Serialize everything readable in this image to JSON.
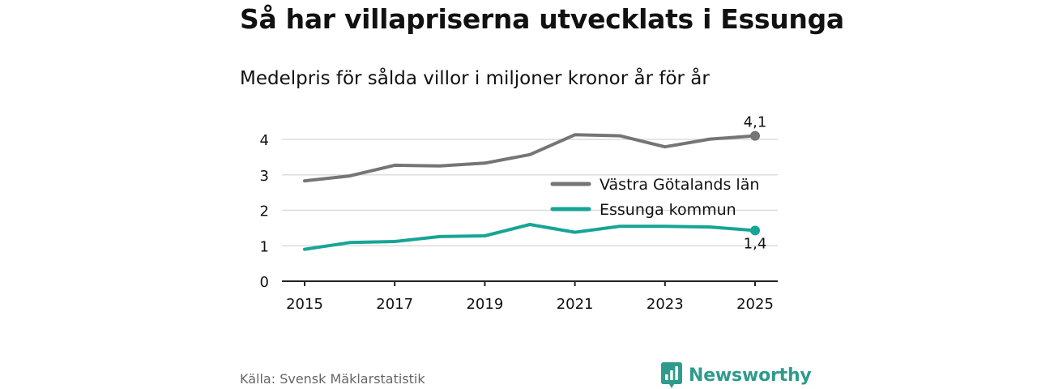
{
  "title": "Så har villapriserna utvecklats i Essunga",
  "subtitle": "Medelpris för sålda villor i miljoner kronor år för år",
  "source": "Källa: Svensk Mäklarstatistik",
  "brand": "Newsworthy",
  "colors": {
    "region": "#757575",
    "municipality": "#16a596",
    "brand": "#2e9b8c"
  },
  "chart_data": {
    "type": "line",
    "title": "Så har villapriserna utvecklats i Essunga",
    "subtitle": "Medelpris för sålda villor i miljoner kronor år för år",
    "xlabel": "",
    "ylabel": "",
    "x": [
      2015,
      2016,
      2017,
      2018,
      2019,
      2020,
      2021,
      2022,
      2023,
      2024,
      2025
    ],
    "xticks": [
      "2015",
      "2017",
      "2019",
      "2021",
      "2023",
      "2025"
    ],
    "yticks": [
      "0",
      "1",
      "2",
      "3",
      "4"
    ],
    "xlim": [
      2015,
      2025
    ],
    "ylim": [
      0,
      4
    ],
    "grid": true,
    "legend": "right",
    "series": [
      {
        "name": "Västra Götalands län",
        "color": "#757575",
        "values": [
          2.83,
          2.97,
          3.27,
          3.25,
          3.33,
          3.57,
          4.13,
          4.1,
          3.79,
          4.01,
          4.1
        ],
        "end_label": "4,1"
      },
      {
        "name": "Essunga kommun",
        "color": "#16a596",
        "values": [
          0.9,
          1.09,
          1.12,
          1.26,
          1.28,
          1.6,
          1.38,
          1.55,
          1.55,
          1.53,
          1.43
        ],
        "end_label": "1,4"
      }
    ]
  }
}
